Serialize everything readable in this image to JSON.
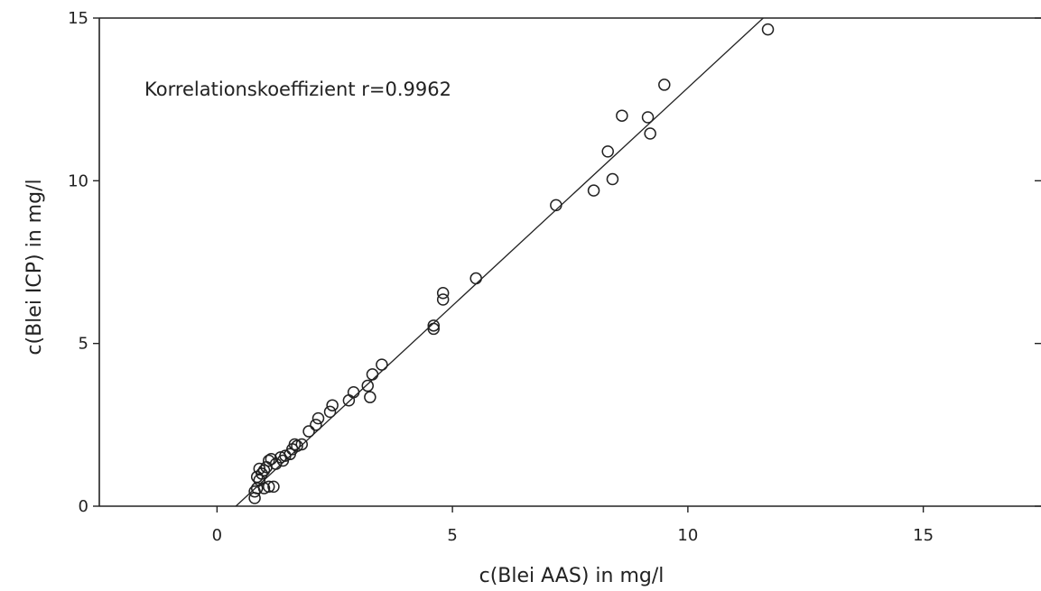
{
  "chart_data": {
    "type": "scatter",
    "xlabel": "c(Blei AAS) in mg/l",
    "ylabel": "c(Blei ICP) in mg/l",
    "xlim": [
      -2.5,
      17.5
    ],
    "ylim": [
      0,
      15
    ],
    "xticks": [
      0,
      5,
      10,
      15
    ],
    "yticks": [
      0,
      5,
      10,
      15
    ],
    "grid": false,
    "annotation": "Korrelationskoeffizient r=0.9962",
    "fit_line": {
      "x": [
        0.4,
        11.6
      ],
      "y": [
        0,
        15
      ]
    },
    "series": [
      {
        "x": [
          0.8,
          0.8,
          0.85,
          0.85,
          0.9,
          0.9,
          0.95,
          1.0,
          1.0,
          1.05,
          1.1,
          1.1,
          1.15,
          1.2,
          1.25,
          1.35,
          1.4,
          1.45,
          1.55,
          1.6,
          1.65,
          1.7,
          1.8,
          1.95,
          2.1,
          2.15,
          2.4,
          2.45,
          2.8,
          2.9,
          3.2,
          3.25,
          3.3,
          3.5,
          4.6,
          4.6,
          4.8,
          4.8,
          5.5,
          7.2,
          8.0,
          8.3,
          8.4,
          8.6,
          9.15,
          9.2,
          9.5,
          11.7
        ],
        "y": [
          0.25,
          0.45,
          0.9,
          0.55,
          1.15,
          0.8,
          1.0,
          0.55,
          1.1,
          1.2,
          0.6,
          1.4,
          1.45,
          0.6,
          1.3,
          1.5,
          1.4,
          1.55,
          1.6,
          1.75,
          1.9,
          1.85,
          1.9,
          2.3,
          2.5,
          2.7,
          2.9,
          3.1,
          3.25,
          3.5,
          3.7,
          3.35,
          4.05,
          4.35,
          5.45,
          5.55,
          6.35,
          6.55,
          7.0,
          9.25,
          9.7,
          10.9,
          10.05,
          12.0,
          11.95,
          11.45,
          12.95,
          14.65
        ]
      }
    ]
  }
}
